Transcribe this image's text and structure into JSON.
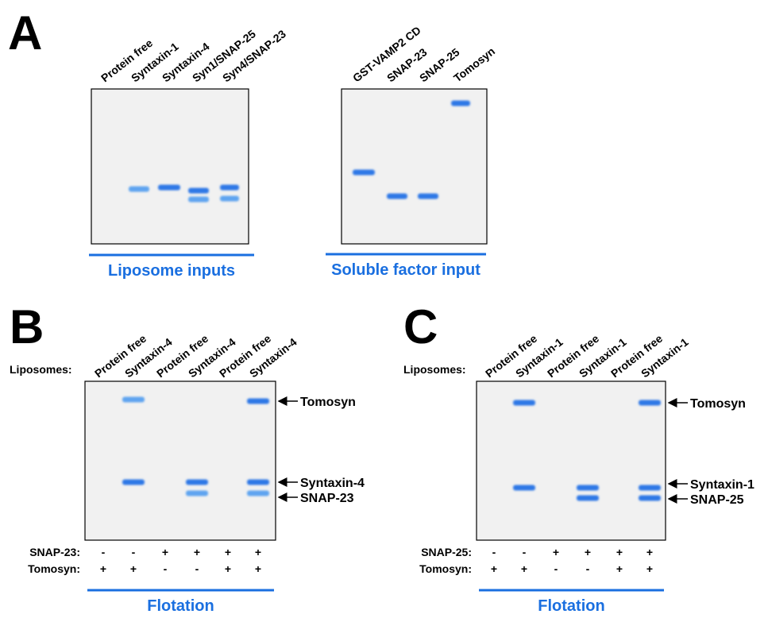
{
  "panels": [
    {
      "label": "A",
      "gels": [
        {
          "lanes": [
            "Protein free",
            "Syntaxin-1",
            "Syntaxin-4",
            "Syn1/SNAP-25",
            "Syn4/SNAP-23"
          ],
          "caption": "Liposome inputs"
        },
        {
          "lanes": [
            "GST-VAMP2 CD",
            "SNAP-23",
            "SNAP-25",
            "Tomosyn"
          ],
          "caption": "Soluble factor input"
        }
      ]
    },
    {
      "label": "B",
      "row_label": "Liposomes:",
      "lanes": [
        "Protein free",
        "Syntaxin-4",
        "Protein free",
        "Syntaxin-4",
        "Protein free",
        "Syntaxin-4"
      ],
      "band_labels": [
        "Tomosyn",
        "Syntaxin-4",
        "SNAP-23"
      ],
      "conditions": [
        {
          "name": "SNAP-23:",
          "signs": [
            "-",
            "-",
            "+",
            "+",
            "+",
            "+"
          ]
        },
        {
          "name": "Tomosyn:",
          "signs": [
            "+",
            "+",
            "-",
            "-",
            "+",
            "+"
          ]
        }
      ],
      "caption": "Flotation"
    },
    {
      "label": "C",
      "row_label": "Liposomes:",
      "lanes": [
        "Protein free",
        "Syntaxin-1",
        "Protein free",
        "Syntaxin-1",
        "Protein free",
        "Syntaxin-1"
      ],
      "band_labels": [
        "Tomosyn",
        "Syntaxin-1",
        "SNAP-25"
      ],
      "conditions": [
        {
          "name": "SNAP-25:",
          "signs": [
            "-",
            "-",
            "+",
            "+",
            "+",
            "+"
          ]
        },
        {
          "name": "Tomosyn:",
          "signs": [
            "+",
            "+",
            "-",
            "-",
            "+",
            "+"
          ]
        }
      ],
      "caption": "Flotation"
    }
  ]
}
